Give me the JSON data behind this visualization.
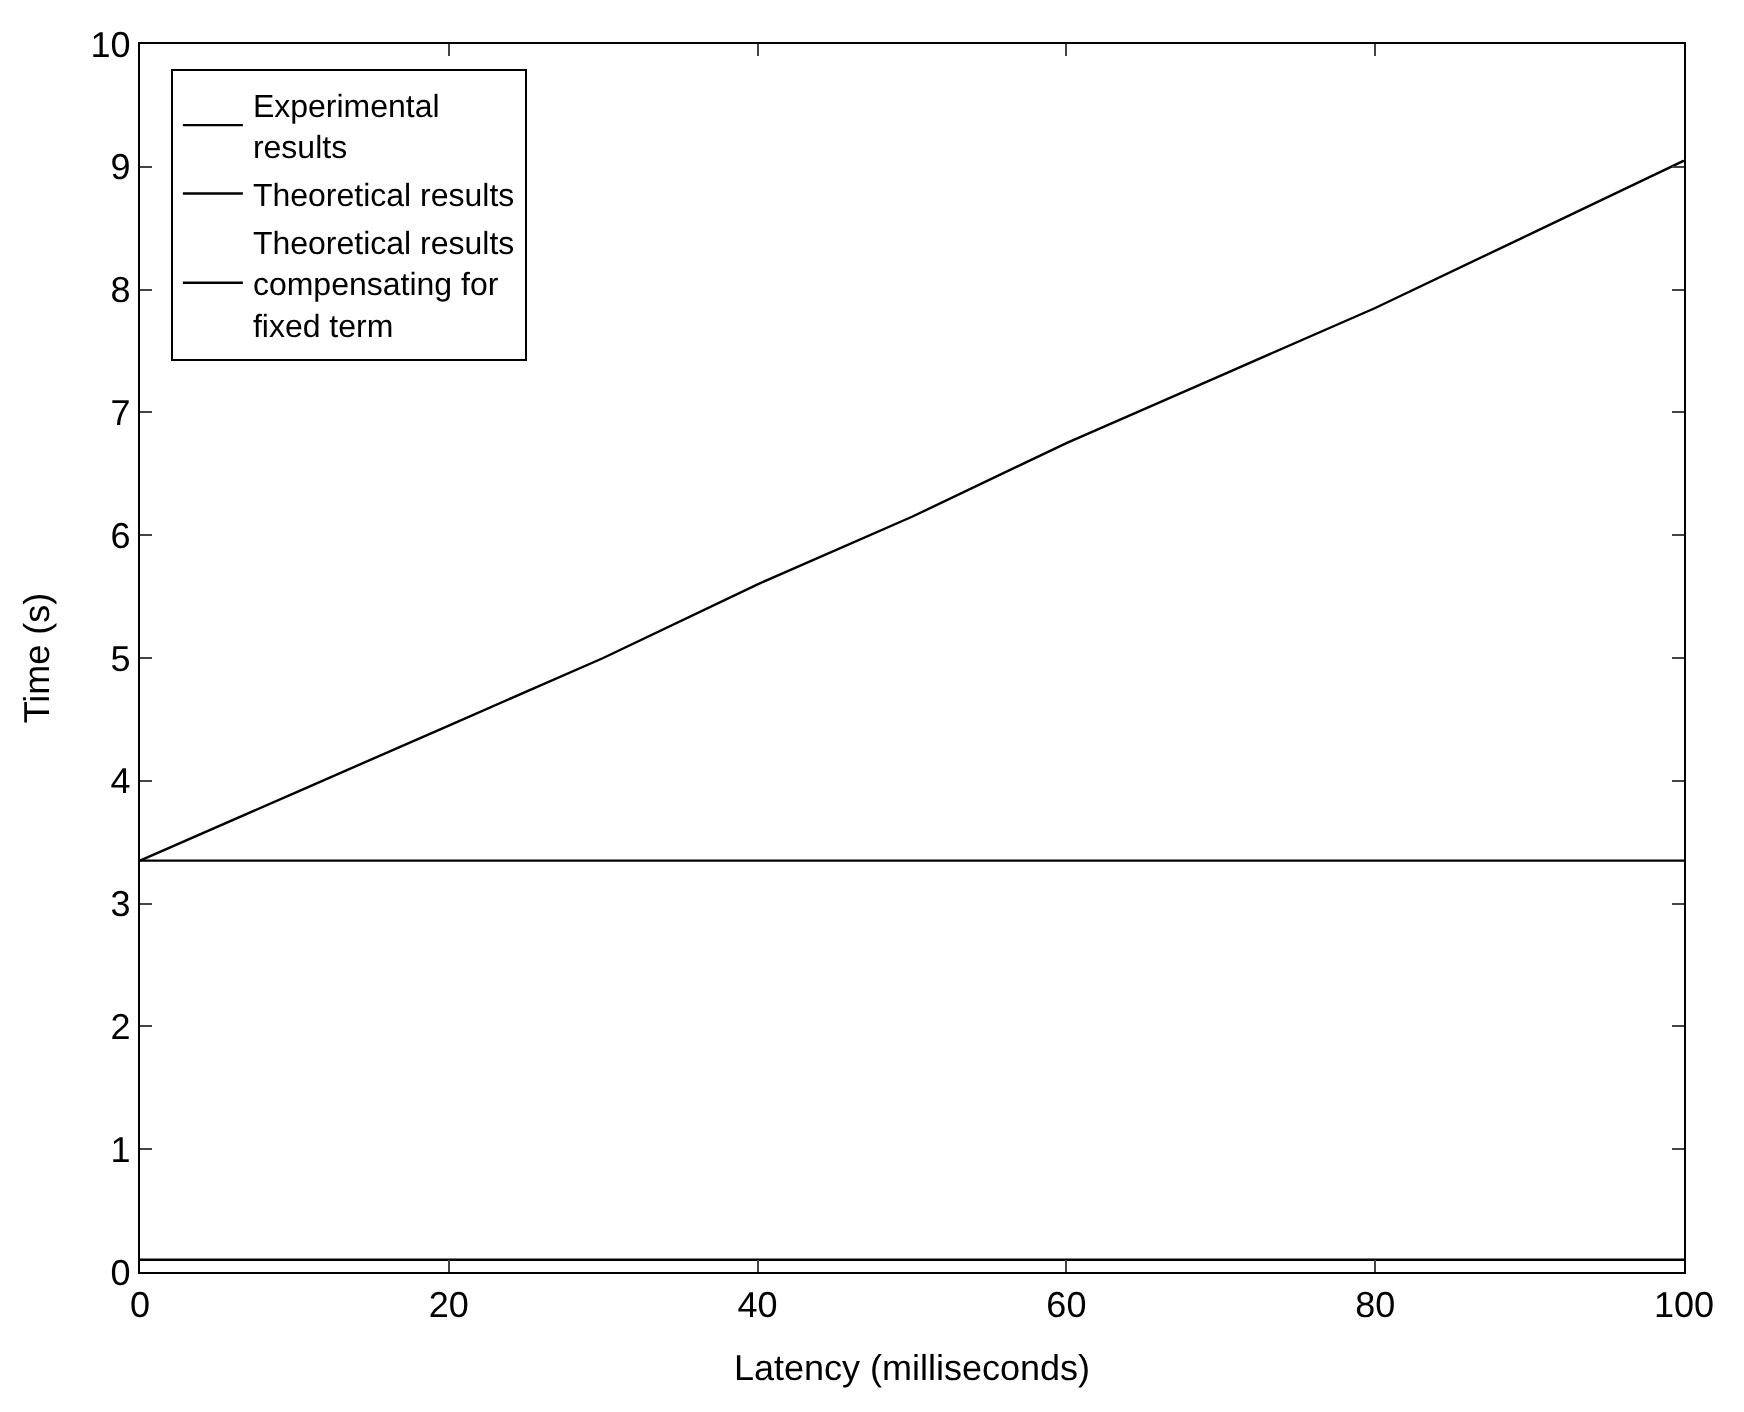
{
  "chart_data": {
    "type": "line",
    "xlabel": "Latency (milliseconds)",
    "ylabel": "Time (s)",
    "x": [
      0,
      10,
      20,
      30,
      40,
      50,
      60,
      70,
      80,
      90,
      100
    ],
    "series": [
      {
        "name": "Experimental results",
        "color": "#000000",
        "values": [
          3.35,
          3.9,
          4.45,
          5.0,
          5.6,
          6.15,
          6.75,
          7.3,
          7.85,
          8.45,
          9.05
        ]
      },
      {
        "name": "Theoretical results",
        "color": "#000000",
        "values": [
          0.1,
          0.1,
          0.1,
          0.1,
          0.1,
          0.1,
          0.1,
          0.1,
          0.1,
          0.1,
          0.1
        ]
      },
      {
        "name": "Theoretical results compensating for fixed term",
        "color": "#000000",
        "values": [
          3.35,
          3.35,
          3.35,
          3.35,
          3.35,
          3.35,
          3.35,
          3.35,
          3.35,
          3.35,
          3.35
        ]
      }
    ],
    "xlim": [
      0,
      100
    ],
    "xticks": [
      0,
      20,
      40,
      60,
      80,
      100
    ],
    "ylim": [
      0,
      10
    ],
    "yticks": [
      0,
      1,
      2,
      3,
      4,
      5,
      6,
      7,
      8,
      9,
      10
    ],
    "legend": "top left",
    "marker": "none",
    "line_style": "solid"
  }
}
